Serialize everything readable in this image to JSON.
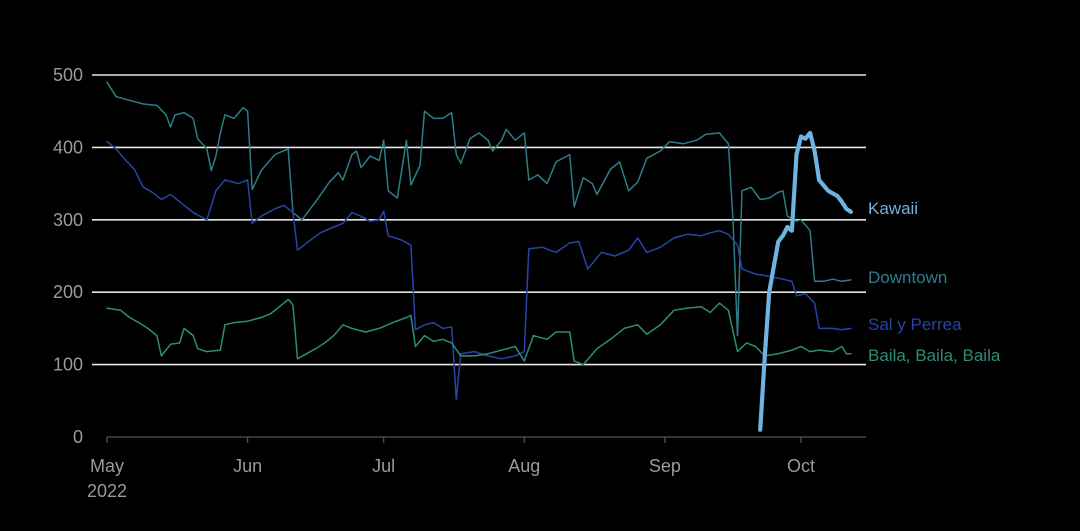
{
  "chart_data": {
    "type": "line",
    "title": "",
    "xlabel": "",
    "ylabel": "",
    "ylim": [
      0,
      500
    ],
    "yticks": [
      0,
      100,
      200,
      300,
      400,
      500
    ],
    "xlim": [
      "2022-04-30",
      "2022-10-14"
    ],
    "xticks": [
      {
        "date": "2022-05-01",
        "label": "May",
        "sublabel": "2022"
      },
      {
        "date": "2022-06-01",
        "label": "Jun",
        "sublabel": ""
      },
      {
        "date": "2022-07-01",
        "label": "Jul",
        "sublabel": ""
      },
      {
        "date": "2022-08-01",
        "label": "Aug",
        "sublabel": ""
      },
      {
        "date": "2022-09-01",
        "label": "Sep",
        "sublabel": ""
      },
      {
        "date": "2022-10-01",
        "label": "Oct",
        "sublabel": ""
      }
    ],
    "grid": "horizontal",
    "legend": "inline labels at right end of lines",
    "series": [
      {
        "name": "Downtown",
        "color": "#2e7d88",
        "points": [
          [
            "2022-05-01",
            490
          ],
          [
            "2022-05-03",
            470
          ],
          [
            "2022-05-06",
            465
          ],
          [
            "2022-05-09",
            460
          ],
          [
            "2022-05-12",
            458
          ],
          [
            "2022-05-14",
            445
          ],
          [
            "2022-05-15",
            428
          ],
          [
            "2022-05-16",
            445
          ],
          [
            "2022-05-18",
            448
          ],
          [
            "2022-05-20",
            440
          ],
          [
            "2022-05-21",
            412
          ],
          [
            "2022-05-23",
            398
          ],
          [
            "2022-05-24",
            368
          ],
          [
            "2022-05-25",
            388
          ],
          [
            "2022-05-26",
            420
          ],
          [
            "2022-05-27",
            445
          ],
          [
            "2022-05-29",
            440
          ],
          [
            "2022-05-31",
            455
          ],
          [
            "2022-06-01",
            450
          ],
          [
            "2022-06-02",
            342
          ],
          [
            "2022-06-04",
            368
          ],
          [
            "2022-06-07",
            390
          ],
          [
            "2022-06-10",
            398
          ],
          [
            "2022-06-10",
            393
          ],
          [
            "2022-06-11",
            310
          ],
          [
            "2022-06-13",
            300
          ],
          [
            "2022-06-16",
            325
          ],
          [
            "2022-06-19",
            352
          ],
          [
            "2022-06-21",
            365
          ],
          [
            "2022-06-22",
            355
          ],
          [
            "2022-06-24",
            390
          ],
          [
            "2022-06-25",
            395
          ],
          [
            "2022-06-26",
            372
          ],
          [
            "2022-06-28",
            388
          ],
          [
            "2022-06-30",
            382
          ],
          [
            "2022-07-01",
            410
          ],
          [
            "2022-07-02",
            340
          ],
          [
            "2022-07-04",
            330
          ],
          [
            "2022-07-06",
            410
          ],
          [
            "2022-07-07",
            348
          ],
          [
            "2022-07-09",
            375
          ],
          [
            "2022-07-10",
            450
          ],
          [
            "2022-07-12",
            440
          ],
          [
            "2022-07-14",
            440
          ],
          [
            "2022-07-16",
            448
          ],
          [
            "2022-07-17",
            390
          ],
          [
            "2022-07-18",
            378
          ],
          [
            "2022-07-20",
            412
          ],
          [
            "2022-07-22",
            420
          ],
          [
            "2022-07-24",
            410
          ],
          [
            "2022-07-25",
            395
          ],
          [
            "2022-07-27",
            410
          ],
          [
            "2022-07-28",
            425
          ],
          [
            "2022-07-30",
            410
          ],
          [
            "2022-08-01",
            420
          ],
          [
            "2022-08-02",
            355
          ],
          [
            "2022-08-04",
            362
          ],
          [
            "2022-08-06",
            350
          ],
          [
            "2022-08-08",
            380
          ],
          [
            "2022-08-11",
            390
          ],
          [
            "2022-08-12",
            318
          ],
          [
            "2022-08-14",
            358
          ],
          [
            "2022-08-16",
            350
          ],
          [
            "2022-08-17",
            335
          ],
          [
            "2022-08-20",
            370
          ],
          [
            "2022-08-22",
            380
          ],
          [
            "2022-08-24",
            340
          ],
          [
            "2022-08-26",
            352
          ],
          [
            "2022-08-28",
            385
          ],
          [
            "2022-08-31",
            395
          ],
          [
            "2022-09-02",
            408
          ],
          [
            "2022-09-05",
            405
          ],
          [
            "2022-09-08",
            410
          ],
          [
            "2022-09-10",
            418
          ],
          [
            "2022-09-13",
            420
          ],
          [
            "2022-09-15",
            405
          ],
          [
            "2022-09-16",
            300
          ],
          [
            "2022-09-17",
            140
          ],
          [
            "2022-09-18",
            340
          ],
          [
            "2022-09-20",
            345
          ],
          [
            "2022-09-22",
            328
          ],
          [
            "2022-09-24",
            330
          ],
          [
            "2022-09-26",
            338
          ],
          [
            "2022-09-27",
            340
          ],
          [
            "2022-09-28",
            305
          ],
          [
            "2022-09-30",
            298
          ],
          [
            "2022-10-01",
            300
          ],
          [
            "2022-10-03",
            285
          ],
          [
            "2022-10-04",
            215
          ],
          [
            "2022-10-06",
            215
          ],
          [
            "2022-10-08",
            218
          ],
          [
            "2022-10-10",
            215
          ],
          [
            "2022-10-12",
            217
          ]
        ]
      },
      {
        "name": "Kawaii",
        "color": "#6fb3e0",
        "points": [
          [
            "2022-09-22",
            10
          ],
          [
            "2022-09-23",
            110
          ],
          [
            "2022-09-24",
            200
          ],
          [
            "2022-09-26",
            270
          ],
          [
            "2022-09-27",
            278
          ],
          [
            "2022-09-28",
            290
          ],
          [
            "2022-09-29",
            285
          ],
          [
            "2022-09-30",
            390
          ],
          [
            "2022-10-01",
            415
          ],
          [
            "2022-10-02",
            412
          ],
          [
            "2022-10-03",
            420
          ],
          [
            "2022-10-04",
            395
          ],
          [
            "2022-10-05",
            355
          ],
          [
            "2022-10-07",
            340
          ],
          [
            "2022-10-09",
            333
          ],
          [
            "2022-10-10",
            325
          ],
          [
            "2022-10-11",
            315
          ],
          [
            "2022-10-12",
            311
          ]
        ]
      },
      {
        "name": "Sal y Perrea",
        "color": "#2745a8",
        "points": [
          [
            "2022-05-01",
            408
          ],
          [
            "2022-05-03",
            398
          ],
          [
            "2022-05-05",
            383
          ],
          [
            "2022-05-07",
            370
          ],
          [
            "2022-05-09",
            345
          ],
          [
            "2022-05-11",
            338
          ],
          [
            "2022-05-13",
            328
          ],
          [
            "2022-05-15",
            335
          ],
          [
            "2022-05-17",
            325
          ],
          [
            "2022-05-20",
            310
          ],
          [
            "2022-05-23",
            300
          ],
          [
            "2022-05-25",
            340
          ],
          [
            "2022-05-27",
            355
          ],
          [
            "2022-05-30",
            350
          ],
          [
            "2022-06-01",
            355
          ],
          [
            "2022-06-02",
            295
          ],
          [
            "2022-06-04",
            305
          ],
          [
            "2022-06-07",
            315
          ],
          [
            "2022-06-09",
            320
          ],
          [
            "2022-06-11",
            310
          ],
          [
            "2022-06-12",
            258
          ],
          [
            "2022-06-14",
            268
          ],
          [
            "2022-06-17",
            282
          ],
          [
            "2022-06-20",
            290
          ],
          [
            "2022-06-22",
            295
          ],
          [
            "2022-06-24",
            310
          ],
          [
            "2022-06-26",
            305
          ],
          [
            "2022-06-28",
            298
          ],
          [
            "2022-06-30",
            300
          ],
          [
            "2022-07-01",
            312
          ],
          [
            "2022-07-02",
            278
          ],
          [
            "2022-07-05",
            272
          ],
          [
            "2022-07-07",
            265
          ],
          [
            "2022-07-08",
            148
          ],
          [
            "2022-07-10",
            155
          ],
          [
            "2022-07-12",
            158
          ],
          [
            "2022-07-14",
            150
          ],
          [
            "2022-07-16",
            152
          ],
          [
            "2022-07-17",
            52
          ],
          [
            "2022-07-18",
            115
          ],
          [
            "2022-07-21",
            118
          ],
          [
            "2022-07-24",
            112
          ],
          [
            "2022-07-27",
            108
          ],
          [
            "2022-07-30",
            112
          ],
          [
            "2022-08-01",
            118
          ],
          [
            "2022-08-02",
            260
          ],
          [
            "2022-08-05",
            262
          ],
          [
            "2022-08-08",
            255
          ],
          [
            "2022-08-11",
            268
          ],
          [
            "2022-08-13",
            270
          ],
          [
            "2022-08-15",
            232
          ],
          [
            "2022-08-18",
            255
          ],
          [
            "2022-08-21",
            250
          ],
          [
            "2022-08-24",
            258
          ],
          [
            "2022-08-26",
            275
          ],
          [
            "2022-08-28",
            255
          ],
          [
            "2022-08-31",
            262
          ],
          [
            "2022-09-03",
            275
          ],
          [
            "2022-09-06",
            280
          ],
          [
            "2022-09-09",
            278
          ],
          [
            "2022-09-11",
            282
          ],
          [
            "2022-09-13",
            285
          ],
          [
            "2022-09-15",
            280
          ],
          [
            "2022-09-17",
            265
          ],
          [
            "2022-09-18",
            232
          ],
          [
            "2022-09-21",
            225
          ],
          [
            "2022-09-24",
            222
          ],
          [
            "2022-09-27",
            218
          ],
          [
            "2022-09-29",
            215
          ],
          [
            "2022-09-30",
            195
          ],
          [
            "2022-10-02",
            198
          ],
          [
            "2022-10-04",
            185
          ],
          [
            "2022-10-05",
            150
          ],
          [
            "2022-10-08",
            150
          ],
          [
            "2022-10-10",
            148
          ],
          [
            "2022-10-12",
            150
          ]
        ]
      },
      {
        "name": "Baila, Baila, Baila",
        "color": "#2e8c78",
        "points": [
          [
            "2022-05-01",
            178
          ],
          [
            "2022-05-04",
            175
          ],
          [
            "2022-05-06",
            165
          ],
          [
            "2022-05-08",
            158
          ],
          [
            "2022-05-10",
            150
          ],
          [
            "2022-05-12",
            140
          ],
          [
            "2022-05-13",
            112
          ],
          [
            "2022-05-15",
            128
          ],
          [
            "2022-05-17",
            130
          ],
          [
            "2022-05-18",
            150
          ],
          [
            "2022-05-20",
            140
          ],
          [
            "2022-05-21",
            122
          ],
          [
            "2022-05-23",
            118
          ],
          [
            "2022-05-26",
            120
          ],
          [
            "2022-05-27",
            155
          ],
          [
            "2022-05-29",
            158
          ],
          [
            "2022-06-01",
            160
          ],
          [
            "2022-06-04",
            165
          ],
          [
            "2022-06-06",
            170
          ],
          [
            "2022-06-08",
            180
          ],
          [
            "2022-06-10",
            190
          ],
          [
            "2022-06-11",
            182
          ],
          [
            "2022-06-12",
            108
          ],
          [
            "2022-06-14",
            115
          ],
          [
            "2022-06-16",
            122
          ],
          [
            "2022-06-18",
            130
          ],
          [
            "2022-06-20",
            140
          ],
          [
            "2022-06-22",
            155
          ],
          [
            "2022-06-24",
            150
          ],
          [
            "2022-06-27",
            145
          ],
          [
            "2022-06-30",
            150
          ],
          [
            "2022-07-03",
            158
          ],
          [
            "2022-07-06",
            165
          ],
          [
            "2022-07-07",
            168
          ],
          [
            "2022-07-08",
            125
          ],
          [
            "2022-07-10",
            140
          ],
          [
            "2022-07-12",
            132
          ],
          [
            "2022-07-14",
            135
          ],
          [
            "2022-07-16",
            130
          ],
          [
            "2022-07-18",
            112
          ],
          [
            "2022-07-21",
            112
          ],
          [
            "2022-07-24",
            115
          ],
          [
            "2022-07-27",
            120
          ],
          [
            "2022-07-30",
            125
          ],
          [
            "2022-08-01",
            105
          ],
          [
            "2022-08-03",
            140
          ],
          [
            "2022-08-06",
            135
          ],
          [
            "2022-08-08",
            145
          ],
          [
            "2022-08-11",
            145
          ],
          [
            "2022-08-12",
            105
          ],
          [
            "2022-08-14",
            100
          ],
          [
            "2022-08-17",
            122
          ],
          [
            "2022-08-20",
            135
          ],
          [
            "2022-08-23",
            150
          ],
          [
            "2022-08-26",
            155
          ],
          [
            "2022-08-28",
            142
          ],
          [
            "2022-08-31",
            155
          ],
          [
            "2022-09-03",
            175
          ],
          [
            "2022-09-06",
            178
          ],
          [
            "2022-09-09",
            180
          ],
          [
            "2022-09-11",
            172
          ],
          [
            "2022-09-13",
            185
          ],
          [
            "2022-09-15",
            175
          ],
          [
            "2022-09-17",
            118
          ],
          [
            "2022-09-19",
            130
          ],
          [
            "2022-09-21",
            125
          ],
          [
            "2022-09-23",
            112
          ],
          [
            "2022-09-26",
            115
          ],
          [
            "2022-09-29",
            120
          ],
          [
            "2022-10-01",
            125
          ],
          [
            "2022-10-03",
            118
          ],
          [
            "2022-10-05",
            120
          ],
          [
            "2022-10-08",
            118
          ],
          [
            "2022-10-10",
            125
          ],
          [
            "2022-10-11",
            115
          ],
          [
            "2022-10-12",
            115
          ]
        ]
      }
    ]
  }
}
